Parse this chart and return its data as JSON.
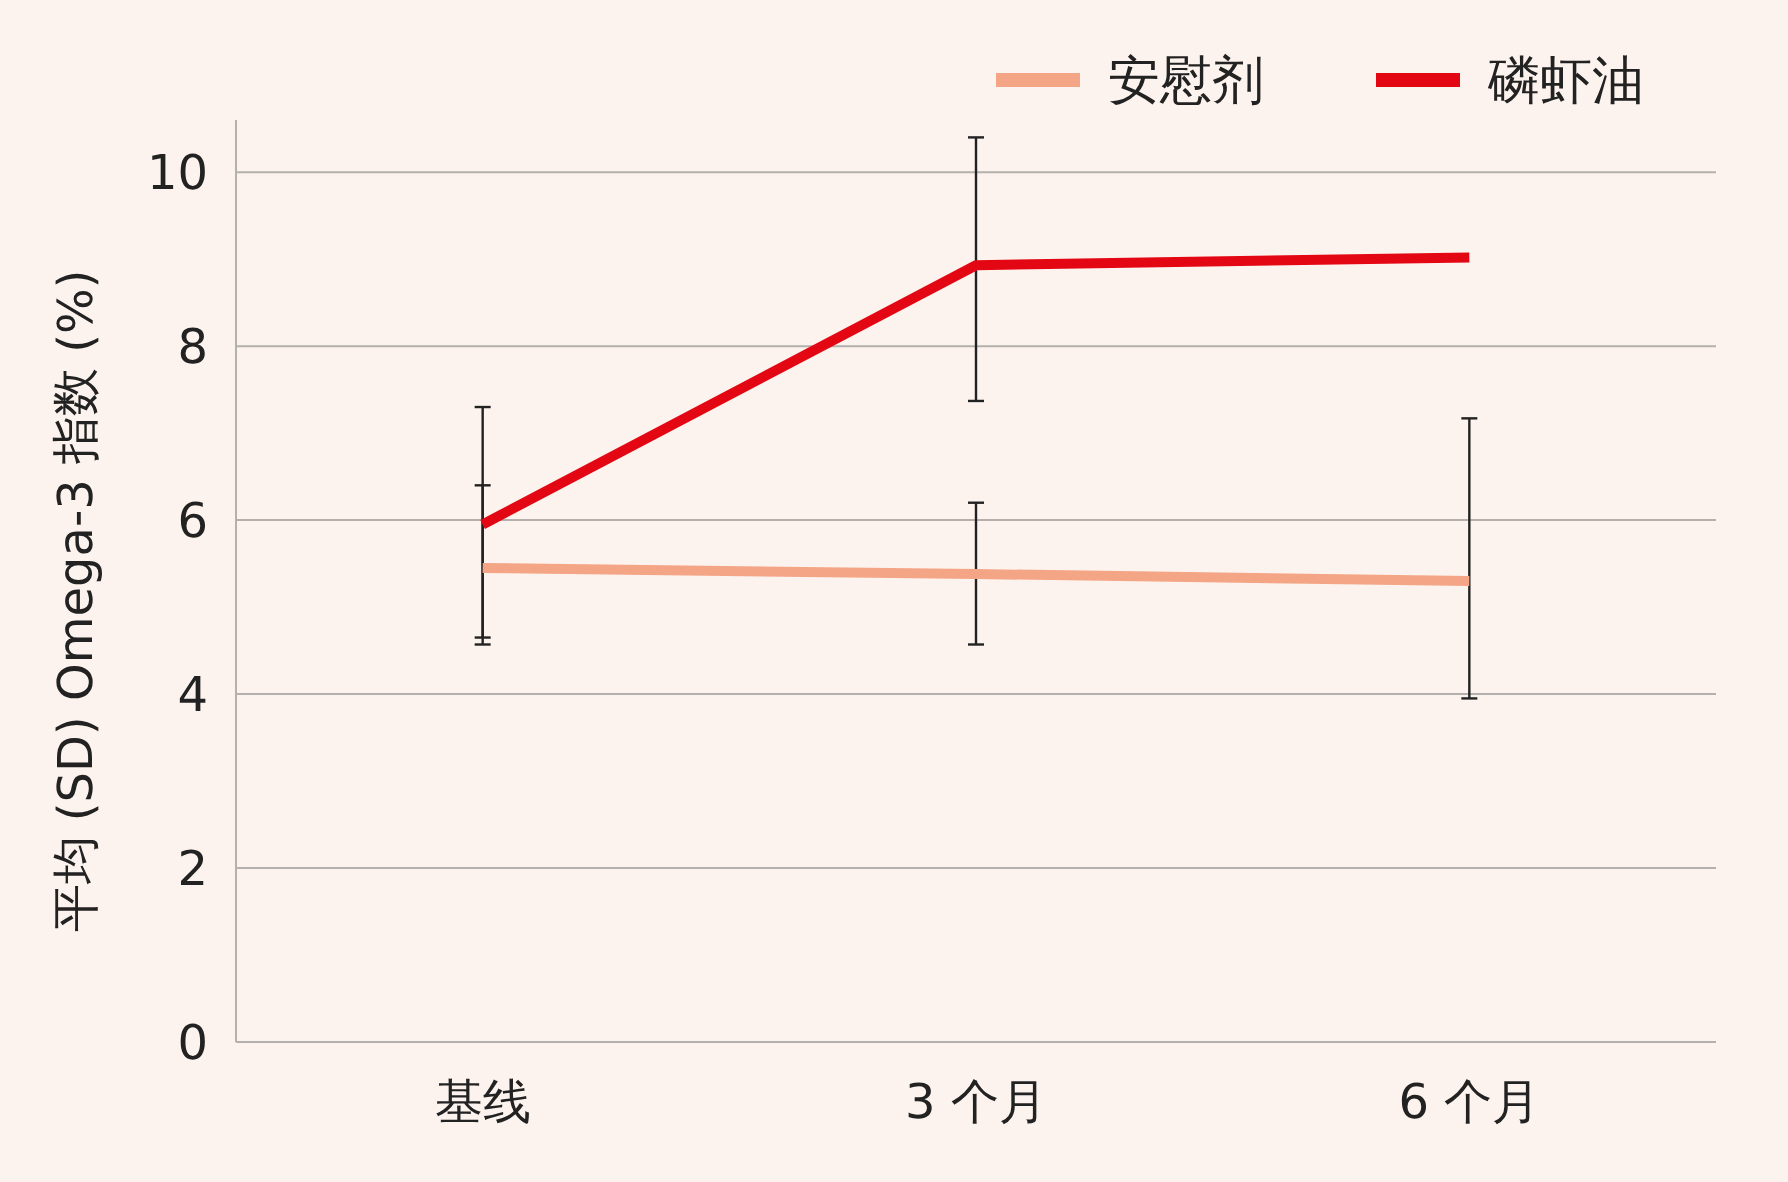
{
  "chart_data": {
    "type": "line",
    "ylabel": "平均 (SD) Omega-3 指数 (%)",
    "categories": [
      "基线",
      "3 个月",
      "6 个月"
    ],
    "series": [
      {
        "name": "安慰剂",
        "color": "#f4a585",
        "values": [
          5.45,
          5.38,
          5.3
        ],
        "errors": [
          [
            4.65,
            6.4
          ],
          [
            4.57,
            6.2
          ],
          [
            3.95,
            7.17
          ]
        ]
      },
      {
        "name": "磷虾油",
        "color": "#e30613",
        "values": [
          5.95,
          8.93,
          9.02
        ],
        "errors": [
          [
            4.57,
            7.3
          ],
          [
            7.37,
            10.4
          ],
          null
        ]
      }
    ],
    "ylim": [
      0,
      10.6
    ],
    "yticks": [
      0,
      2,
      4,
      6,
      8,
      10
    ],
    "grid": "y",
    "legend": "top right",
    "marker": "none",
    "line_style": "solid"
  }
}
